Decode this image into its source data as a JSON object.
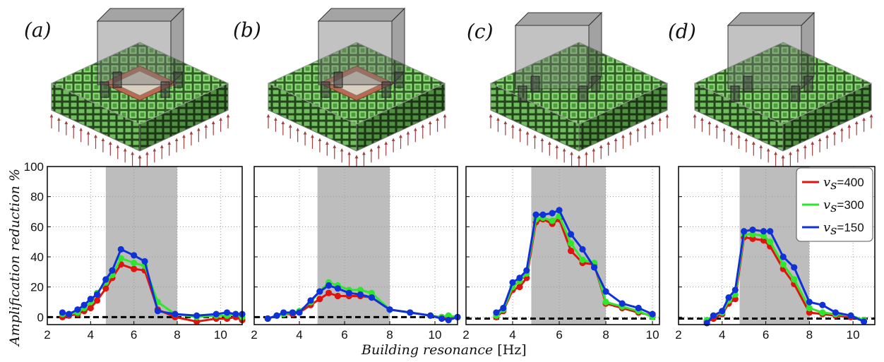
{
  "figure": {
    "panel_labels": [
      "(a)",
      "(b)",
      "(c)",
      "(d)"
    ],
    "ylabel": "Amplification reduction %",
    "xlabel_italic": "Building resonance",
    "xlabel_unit": "[Hz]",
    "legend": [
      {
        "var": "v",
        "sub": "s",
        "label": "=400",
        "color": "#e0140f"
      },
      {
        "var": "v",
        "sub": "s",
        "label": "=300",
        "color": "#2ee62e"
      },
      {
        "var": "v",
        "sub": "s",
        "label": "=150",
        "color": "#1030d8"
      }
    ]
  },
  "illustrations": [
    {
      "name": "panel-a-illustration",
      "depicts": "building on metamaterial block with foundation plate"
    },
    {
      "name": "panel-b-illustration",
      "depicts": "building on metamaterial block with foundation plate"
    },
    {
      "name": "panel-c-illustration",
      "depicts": "building on metamaterial block without plate"
    },
    {
      "name": "panel-d-illustration",
      "depicts": "building on metamaterial block without plate"
    }
  ],
  "chart_data": [
    {
      "type": "line",
      "panel": "(a)",
      "xlim": [
        2,
        11
      ],
      "ylim": [
        -5,
        100
      ],
      "xticks": [
        2,
        4,
        6,
        8,
        10
      ],
      "yticks": [
        0,
        20,
        40,
        60,
        80,
        100
      ],
      "show_yticklabels": true,
      "shaded_band": [
        4.7,
        8.0
      ],
      "reference_line_y": 0,
      "series": [
        {
          "name": "v_s=400",
          "color": "#e0140f",
          "x": [
            2.7,
            3.0,
            3.4,
            3.7,
            4.0,
            4.3,
            4.7,
            5.0,
            5.4,
            6.0,
            6.5,
            7.1,
            7.9,
            8.9,
            9.8,
            10.3,
            10.7,
            11.0
          ],
          "y": [
            0,
            1,
            2,
            4,
            6,
            11,
            19,
            26,
            35,
            32,
            31,
            5,
            0,
            -3,
            -1,
            -1,
            0,
            -2
          ]
        },
        {
          "name": "v_s=300",
          "color": "#2ee62e",
          "x": [
            2.7,
            3.0,
            3.4,
            3.7,
            4.0,
            4.3,
            4.7,
            5.0,
            5.4,
            6.0,
            6.5,
            7.1,
            7.9,
            8.9,
            9.8,
            10.3,
            10.7,
            11.0
          ],
          "y": [
            2,
            2,
            3,
            6,
            10,
            16,
            23,
            28,
            39,
            36,
            34,
            10,
            2,
            0,
            1,
            1,
            2,
            0
          ]
        },
        {
          "name": "v_s=150",
          "color": "#1030d8",
          "x": [
            2.7,
            3.0,
            3.4,
            3.7,
            4.0,
            4.3,
            4.7,
            5.0,
            5.4,
            6.0,
            6.5,
            7.1,
            7.9,
            8.9,
            9.8,
            10.3,
            10.7,
            11.0
          ],
          "y": [
            3,
            2,
            5,
            8,
            12,
            15,
            25,
            31,
            45,
            41,
            37,
            4,
            2,
            1,
            2,
            3,
            2,
            2
          ]
        }
      ]
    },
    {
      "type": "line",
      "panel": "(b)",
      "xlim": [
        2,
        11
      ],
      "ylim": [
        -5,
        100
      ],
      "xticks": [
        2,
        4,
        6,
        8,
        10
      ],
      "yticks": [
        0,
        20,
        40,
        60,
        80,
        100
      ],
      "show_yticklabels": false,
      "shaded_band": [
        4.8,
        8.0
      ],
      "reference_line_y": 0,
      "series": [
        {
          "name": "v_s=400",
          "color": "#e0140f",
          "x": [
            2.6,
            3.0,
            3.3,
            3.7,
            4.0,
            4.5,
            4.9,
            5.3,
            5.7,
            6.2,
            6.7,
            7.2,
            8.0,
            8.9,
            9.8,
            10.3,
            10.6,
            11.0
          ],
          "y": [
            -1,
            1,
            2,
            2,
            3,
            8,
            12,
            16,
            14,
            14,
            14,
            13,
            5,
            3,
            1,
            0,
            -1,
            0
          ]
        },
        {
          "name": "v_s=300",
          "color": "#2ee62e",
          "x": [
            2.6,
            3.0,
            3.3,
            3.7,
            4.0,
            4.5,
            4.9,
            5.3,
            5.7,
            6.2,
            6.7,
            7.2,
            8.0,
            8.9,
            9.8,
            10.3,
            10.6,
            11.0
          ],
          "y": [
            -1,
            1,
            2,
            3,
            4,
            10,
            17,
            23,
            21,
            18,
            18,
            16,
            5,
            3,
            1,
            0,
            1,
            0
          ]
        },
        {
          "name": "v_s=150",
          "color": "#1030d8",
          "x": [
            2.6,
            3.0,
            3.3,
            3.7,
            4.0,
            4.5,
            4.9,
            5.3,
            5.7,
            6.2,
            6.7,
            7.2,
            8.0,
            8.9,
            9.8,
            10.3,
            10.6,
            11.0
          ],
          "y": [
            -1,
            1,
            3,
            3,
            3,
            11,
            17,
            21,
            19,
            16,
            15,
            13,
            5,
            3,
            1,
            -1,
            -2,
            0
          ]
        }
      ]
    },
    {
      "type": "line",
      "panel": "(c)",
      "xlim": [
        2,
        10.3
      ],
      "ylim": [
        -5,
        100
      ],
      "xticks": [
        2,
        4,
        6,
        8,
        10
      ],
      "yticks": [
        0,
        20,
        40,
        60,
        80,
        100
      ],
      "show_yticklabels": false,
      "shaded_band": [
        4.8,
        8.0
      ],
      "reference_line_y": -1,
      "series": [
        {
          "name": "v_s=400",
          "color": "#e0140f",
          "x": [
            3.3,
            3.6,
            4.0,
            4.3,
            4.6,
            5.0,
            5.3,
            5.7,
            6.0,
            6.5,
            7.0,
            7.5,
            8.0,
            8.7,
            9.4,
            10.0
          ],
          "y": [
            0,
            4,
            18,
            20,
            26,
            63,
            65,
            62,
            65,
            44,
            36,
            35,
            9,
            6,
            3,
            1
          ]
        },
        {
          "name": "v_s=300",
          "color": "#2ee62e",
          "x": [
            3.3,
            3.6,
            4.0,
            4.3,
            4.6,
            5.0,
            5.3,
            5.7,
            6.0,
            6.5,
            7.0,
            7.5,
            8.0,
            8.7,
            9.4,
            10.0
          ],
          "y": [
            1,
            5,
            20,
            24,
            29,
            65,
            66,
            64,
            67,
            49,
            38,
            36,
            10,
            7,
            4,
            0
          ]
        },
        {
          "name": "v_s=150",
          "color": "#1030d8",
          "x": [
            3.3,
            3.6,
            4.0,
            4.3,
            4.6,
            5.0,
            5.3,
            5.7,
            6.0,
            6.5,
            7.0,
            7.5,
            8.0,
            8.7,
            9.4,
            10.0
          ],
          "y": [
            3,
            6,
            23,
            26,
            31,
            68,
            68,
            69,
            71,
            55,
            45,
            33,
            17,
            9,
            6,
            2
          ]
        }
      ]
    },
    {
      "type": "line",
      "panel": "(d)",
      "xlim": [
        2,
        11
      ],
      "ylim": [
        -5,
        100
      ],
      "xticks": [
        2,
        4,
        6,
        8,
        10
      ],
      "yticks": [
        0,
        20,
        40,
        60,
        80,
        100
      ],
      "show_yticklabels": false,
      "shaded_band": [
        4.8,
        8.0
      ],
      "reference_line_y": -1,
      "series": [
        {
          "name": "v_s=400",
          "color": "#e0140f",
          "x": [
            3.3,
            3.6,
            4.0,
            4.3,
            4.6,
            5.0,
            5.4,
            5.9,
            6.2,
            6.8,
            7.3,
            8.0,
            8.6,
            9.2,
            9.9,
            10.5
          ],
          "y": [
            -3,
            -1,
            2,
            9,
            12,
            53,
            52,
            51,
            47,
            32,
            22,
            3,
            2,
            1,
            0,
            -2
          ]
        },
        {
          "name": "v_s=300",
          "color": "#2ee62e",
          "x": [
            3.3,
            3.6,
            4.0,
            4.3,
            4.6,
            5.0,
            5.4,
            5.9,
            6.2,
            6.8,
            7.3,
            8.0,
            8.6,
            9.2,
            9.9,
            10.5
          ],
          "y": [
            -2,
            1,
            3,
            11,
            15,
            55,
            55,
            54,
            50,
            35,
            25,
            6,
            3,
            2,
            1,
            -2
          ]
        },
        {
          "name": "v_s=150",
          "color": "#1030d8",
          "x": [
            3.3,
            3.6,
            4.0,
            4.3,
            4.6,
            5.0,
            5.4,
            5.9,
            6.2,
            6.8,
            7.3,
            8.0,
            8.6,
            9.2,
            9.9,
            10.5
          ],
          "y": [
            -4,
            1,
            4,
            13,
            18,
            57,
            58,
            57,
            57,
            40,
            33,
            10,
            8,
            3,
            1,
            -3
          ]
        }
      ]
    }
  ]
}
